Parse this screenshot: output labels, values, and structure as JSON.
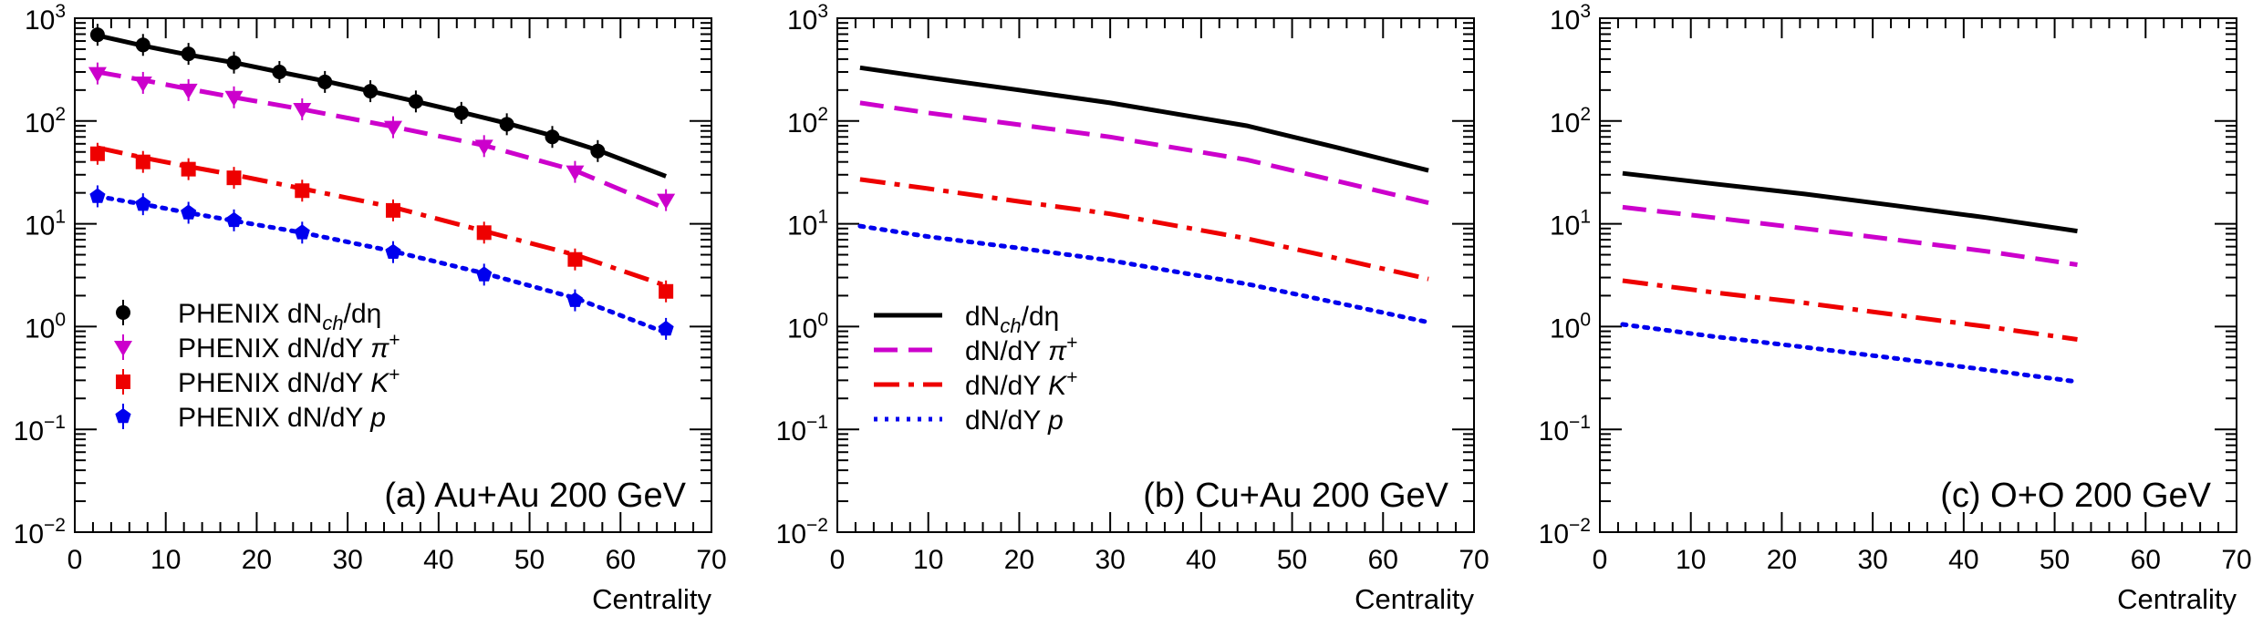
{
  "chart_data": [
    {
      "type": "line",
      "panel": "a",
      "title": "(a) Au+Au 200 GeV",
      "xlabel": "Centrality",
      "ylabel": "",
      "xlim": [
        0,
        70
      ],
      "ylim": [
        0.01,
        1000
      ],
      "yscale": "log",
      "x_ticks": [
        0,
        10,
        20,
        30,
        40,
        50,
        60,
        70
      ],
      "y_ticks": [
        {
          "base": "10",
          "exp": "−2",
          "value": 0.01
        },
        {
          "base": "10",
          "exp": "−1",
          "value": 0.1
        },
        {
          "base": "10",
          "exp": "0",
          "value": 1
        },
        {
          "base": "10",
          "exp": "1",
          "value": 10
        },
        {
          "base": "10",
          "exp": "2",
          "value": 100
        },
        {
          "base": "10",
          "exp": "3",
          "value": 1000
        }
      ],
      "legend_position": "lower-left",
      "legend": [
        {
          "label": "PHENIX dN",
          "sub": "ch",
          "tail": "/dη",
          "marker": "circle",
          "color": "#000000"
        },
        {
          "label": "PHENIX dN/dY ",
          "sym": "π",
          "sup": "+",
          "marker": "triangle-down",
          "color": "#cc00cc"
        },
        {
          "label": "PHENIX dN/dY ",
          "sym": "K",
          "sup": "+",
          "marker": "square",
          "color": "#ee0000"
        },
        {
          "label": "PHENIX dN/dY ",
          "sym": "p",
          "sup": "",
          "marker": "pentagon",
          "color": "#0000ee"
        }
      ],
      "series": [
        {
          "name": "dNch/dη model",
          "style": "solid",
          "color": "#000000",
          "x": [
            2.5,
            7.5,
            12.5,
            17.5,
            22.5,
            27.5,
            32.5,
            37.5,
            42.5,
            47.5,
            52.5,
            57.5,
            65
          ],
          "y": [
            680,
            540,
            440,
            370,
            300,
            245,
            195,
            155,
            122,
            95,
            72,
            52,
            29
          ]
        },
        {
          "name": "dN/dY π+ model",
          "style": "dashed",
          "color": "#cc00cc",
          "x": [
            2.5,
            7.5,
            12.5,
            17.5,
            25,
            35,
            45,
            55,
            65
          ],
          "y": [
            300,
            250,
            205,
            170,
            130,
            88,
            58,
            33,
            14
          ]
        },
        {
          "name": "dN/dY K+ model",
          "style": "dashdot",
          "color": "#ee0000",
          "x": [
            2.5,
            7.5,
            12.5,
            17.5,
            25,
            35,
            45,
            55,
            65
          ],
          "y": [
            55,
            44,
            36,
            30,
            22,
            14.5,
            8.5,
            5,
            2.5
          ]
        },
        {
          "name": "dN/dY p model",
          "style": "dotted",
          "color": "#0000ee",
          "x": [
            2.5,
            7.5,
            12.5,
            17.5,
            25,
            35,
            45,
            55,
            65
          ],
          "y": [
            18.5,
            15.5,
            12.8,
            10.7,
            8.2,
            5.4,
            3.3,
            1.9,
            0.87
          ]
        },
        {
          "name": "PHENIX dNch/dη",
          "style": "markers",
          "marker": "circle",
          "color": "#000000",
          "x": [
            2.5,
            7.5,
            12.5,
            17.5,
            22.5,
            27.5,
            32.5,
            37.5,
            42.5,
            47.5,
            52.5,
            57.5
          ],
          "y": [
            690,
            550,
            450,
            370,
            300,
            240,
            195,
            155,
            120,
            93,
            70,
            51
          ]
        },
        {
          "name": "PHENIX dN/dY π+",
          "style": "markers",
          "marker": "triangle-down",
          "color": "#cc00cc",
          "x": [
            2.5,
            7.5,
            12.5,
            17.5,
            25,
            35,
            45,
            55,
            65
          ],
          "y": [
            290,
            235,
            200,
            170,
            130,
            87,
            57,
            32,
            17
          ]
        },
        {
          "name": "PHENIX dN/dY K+",
          "style": "markers",
          "marker": "square",
          "color": "#ee0000",
          "x": [
            2.5,
            7.5,
            12.5,
            17.5,
            25,
            35,
            45,
            55,
            65
          ],
          "y": [
            48,
            40,
            34,
            28,
            21,
            13.5,
            8.2,
            4.5,
            2.2
          ]
        },
        {
          "name": "PHENIX dN/dY p",
          "style": "markers",
          "marker": "pentagon",
          "color": "#0000ee",
          "x": [
            2.5,
            7.5,
            12.5,
            17.5,
            25,
            35,
            45,
            55,
            65
          ],
          "y": [
            18.5,
            15.5,
            12.8,
            10.8,
            8.2,
            5.3,
            3.2,
            1.8,
            0.95
          ]
        }
      ]
    },
    {
      "type": "line",
      "panel": "b",
      "title": "(b) Cu+Au 200 GeV",
      "xlabel": "Centrality",
      "ylabel": "",
      "xlim": [
        0,
        70
      ],
      "ylim": [
        0.01,
        1000
      ],
      "yscale": "log",
      "x_ticks": [
        0,
        10,
        20,
        30,
        40,
        50,
        60,
        70
      ],
      "y_ticks": [
        {
          "base": "10",
          "exp": "−2",
          "value": 0.01
        },
        {
          "base": "10",
          "exp": "−1",
          "value": 0.1
        },
        {
          "base": "10",
          "exp": "0",
          "value": 1
        },
        {
          "base": "10",
          "exp": "1",
          "value": 10
        },
        {
          "base": "10",
          "exp": "2",
          "value": 100
        },
        {
          "base": "10",
          "exp": "3",
          "value": 1000
        }
      ],
      "legend_position": "lower-left",
      "legend": [
        {
          "label": "dN",
          "sub": "ch",
          "tail": "/dη",
          "style": "solid",
          "color": "#000000"
        },
        {
          "label": "dN/dY  ",
          "sym": "π",
          "sup": "+",
          "style": "dashed",
          "color": "#cc00cc"
        },
        {
          "label": "dN/dY  ",
          "sym": "K",
          "sup": "+",
          "style": "dashdot",
          "color": "#ee0000"
        },
        {
          "label": "dN/dY  ",
          "sym": "p",
          "sup": "",
          "style": "dotted",
          "color": "#0000ee"
        }
      ],
      "series": [
        {
          "name": "dNch/dη",
          "style": "solid",
          "color": "#000000",
          "x": [
            2.5,
            10,
            20,
            30,
            45,
            55,
            65
          ],
          "y": [
            330,
            265,
            200,
            150,
            90,
            55,
            33
          ]
        },
        {
          "name": "dN/dY π+",
          "style": "dashed",
          "color": "#cc00cc",
          "x": [
            2.5,
            10,
            20,
            30,
            45,
            55,
            65
          ],
          "y": [
            150,
            120,
            92,
            70,
            42,
            26,
            16
          ]
        },
        {
          "name": "dN/dY K+",
          "style": "dashdot",
          "color": "#ee0000",
          "x": [
            2.5,
            10,
            20,
            30,
            45,
            55,
            65
          ],
          "y": [
            27,
            22,
            16.5,
            12.5,
            7.2,
            4.6,
            2.9
          ]
        },
        {
          "name": "dN/dY p",
          "style": "dotted",
          "color": "#0000ee",
          "x": [
            2.5,
            10,
            20,
            30,
            45,
            55,
            65
          ],
          "y": [
            9.5,
            7.5,
            5.8,
            4.4,
            2.6,
            1.7,
            1.1
          ]
        }
      ]
    },
    {
      "type": "line",
      "panel": "c",
      "title": "(c) O+O 200 GeV",
      "xlabel": "Centrality",
      "ylabel": "",
      "xlim": [
        0,
        70
      ],
      "ylim": [
        0.01,
        1000
      ],
      "yscale": "log",
      "x_ticks": [
        0,
        10,
        20,
        30,
        40,
        50,
        60,
        70
      ],
      "y_ticks": [
        {
          "base": "10",
          "exp": "−2",
          "value": 0.01
        },
        {
          "base": "10",
          "exp": "−1",
          "value": 0.1
        },
        {
          "base": "10",
          "exp": "0",
          "value": 1
        },
        {
          "base": "10",
          "exp": "1",
          "value": 10
        },
        {
          "base": "10",
          "exp": "2",
          "value": 100
        },
        {
          "base": "10",
          "exp": "3",
          "value": 1000
        }
      ],
      "legend": [],
      "series": [
        {
          "name": "dNch/dη",
          "style": "solid",
          "color": "#000000",
          "x": [
            2.5,
            12.5,
            22.5,
            32.5,
            42.5,
            52.5
          ],
          "y": [
            31,
            24.5,
            19.5,
            15,
            11.5,
            8.5
          ]
        },
        {
          "name": "dN/dY π+",
          "style": "dashed",
          "color": "#cc00cc",
          "x": [
            2.5,
            12.5,
            22.5,
            32.5,
            42.5,
            52.5
          ],
          "y": [
            14.5,
            11.5,
            9,
            7,
            5.4,
            4
          ]
        },
        {
          "name": "dN/dY K+",
          "style": "dashdot",
          "color": "#ee0000",
          "x": [
            2.5,
            12.5,
            22.5,
            32.5,
            42.5,
            52.5
          ],
          "y": [
            2.8,
            2.15,
            1.7,
            1.3,
            1.0,
            0.75
          ]
        },
        {
          "name": "dN/dY p",
          "style": "dotted",
          "color": "#0000ee",
          "x": [
            2.5,
            12.5,
            22.5,
            32.5,
            42.5,
            52.5
          ],
          "y": [
            1.05,
            0.8,
            0.63,
            0.49,
            0.38,
            0.29
          ]
        }
      ]
    }
  ]
}
